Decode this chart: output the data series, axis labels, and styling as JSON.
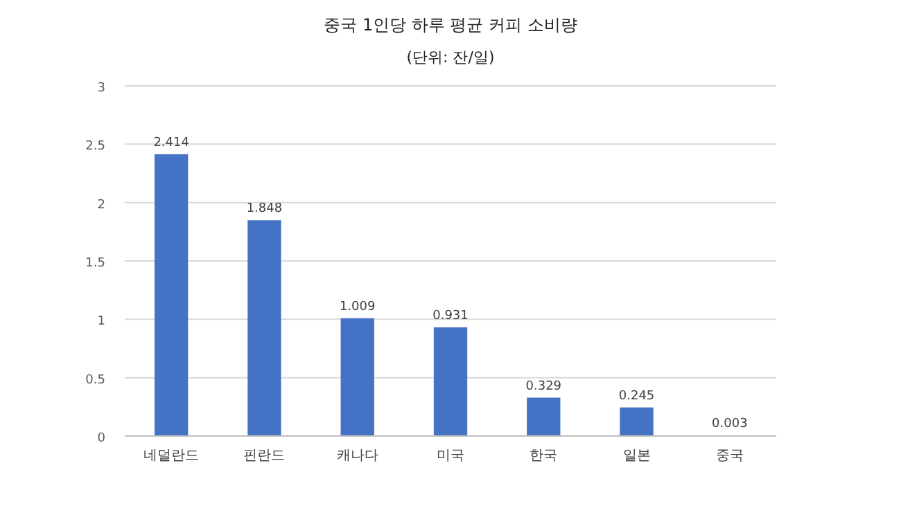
{
  "chart_data": {
    "type": "bar",
    "title": "중국 1인당 하루 평균 커피 소비량",
    "subtitle": "(단위: 잔/일)",
    "categories": [
      "네덜란드",
      "핀란드",
      "캐나다",
      "미국",
      "한국",
      "일본",
      "중국"
    ],
    "values": [
      2.414,
      1.848,
      1.009,
      0.931,
      0.329,
      0.245,
      0.003
    ],
    "color": "#4472c4",
    "ylim": [
      0,
      3
    ],
    "yticks": [
      0,
      0.5,
      1,
      1.5,
      2,
      2.5,
      3
    ],
    "grid": "y",
    "data_labels": true
  }
}
